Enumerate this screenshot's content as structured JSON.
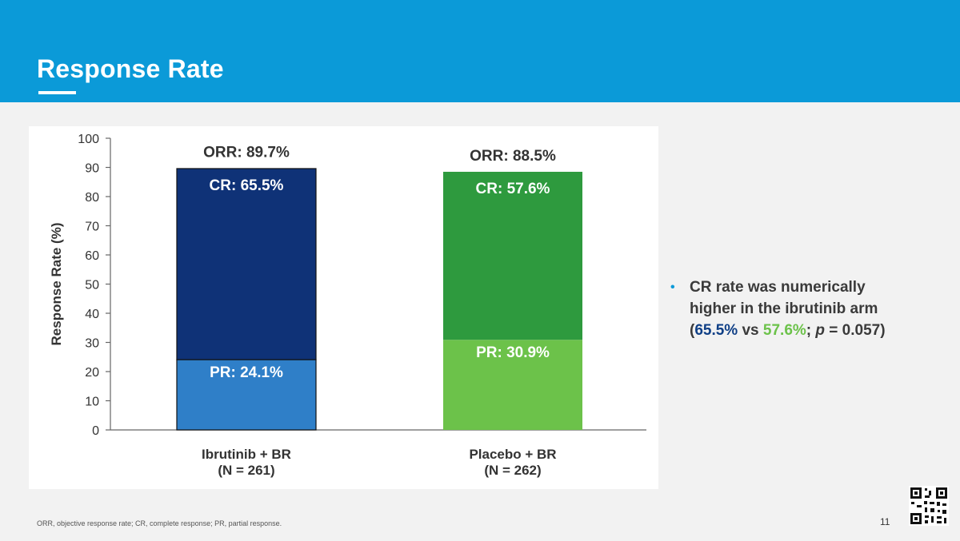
{
  "slide": {
    "title": "Response Rate",
    "footnote": "ORR, objective response rate; CR, complete response; PR, partial response.",
    "page_number": "11"
  },
  "bullet": {
    "line1": "CR rate was numerically",
    "line2": "higher in the ibrutinib arm",
    "open_paren": "(",
    "cr_ibrutinib": "65.5%",
    "vs": " vs ",
    "cr_placebo": "57.6%",
    "sep": "; ",
    "p_italic": "p",
    "p_value": " = 0.057)"
  },
  "chart_data": {
    "type": "bar",
    "stacked": true,
    "categories": [
      "Ibrutinib + BR",
      "Placebo + BR"
    ],
    "category_sublabels": [
      "(N = 261)",
      "(N = 262)"
    ],
    "series": [
      {
        "name": "PR",
        "values": [
          24.1,
          30.9
        ],
        "colors": [
          "#2f7fc8",
          "#6cc24a"
        ],
        "labels": [
          "PR: 24.1%",
          "PR: 30.9%"
        ]
      },
      {
        "name": "CR",
        "values": [
          65.5,
          57.6
        ],
        "colors": [
          "#0f3277",
          "#2e9a3e"
        ],
        "labels": [
          "CR: 65.5%",
          "CR: 57.6%"
        ]
      }
    ],
    "totals": [
      89.7,
      88.5
    ],
    "total_labels": [
      "ORR: 89.7%",
      "ORR: 88.5%"
    ],
    "ylabel": "Response Rate (%)",
    "ylim": [
      0,
      100
    ],
    "yticks": [
      0,
      10,
      20,
      30,
      40,
      50,
      60,
      70,
      80,
      90,
      100
    ],
    "grid": false
  }
}
